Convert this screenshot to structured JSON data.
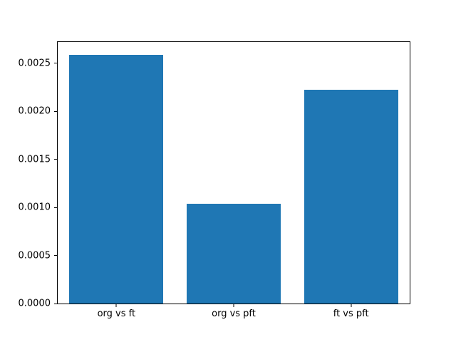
{
  "chart_data": {
    "type": "bar",
    "title": "",
    "xlabel": "",
    "ylabel": "",
    "categories": [
      "org vs ft",
      "org vs pft",
      "ft vs pft"
    ],
    "values": [
      0.00259,
      0.00104,
      0.00222
    ],
    "bar_color": "#1f77b4",
    "bar_width_fraction": 0.8,
    "ylim": [
      0,
      0.00272
    ],
    "grid": false,
    "legend": null,
    "yticks": [
      {
        "value": 0.0,
        "label": "0.0000"
      },
      {
        "value": 0.0005,
        "label": "0.0005"
      },
      {
        "value": 0.001,
        "label": "0.0010"
      },
      {
        "value": 0.0015,
        "label": "0.0015"
      },
      {
        "value": 0.002,
        "label": "0.0020"
      },
      {
        "value": 0.0025,
        "label": "0.0025"
      }
    ]
  }
}
